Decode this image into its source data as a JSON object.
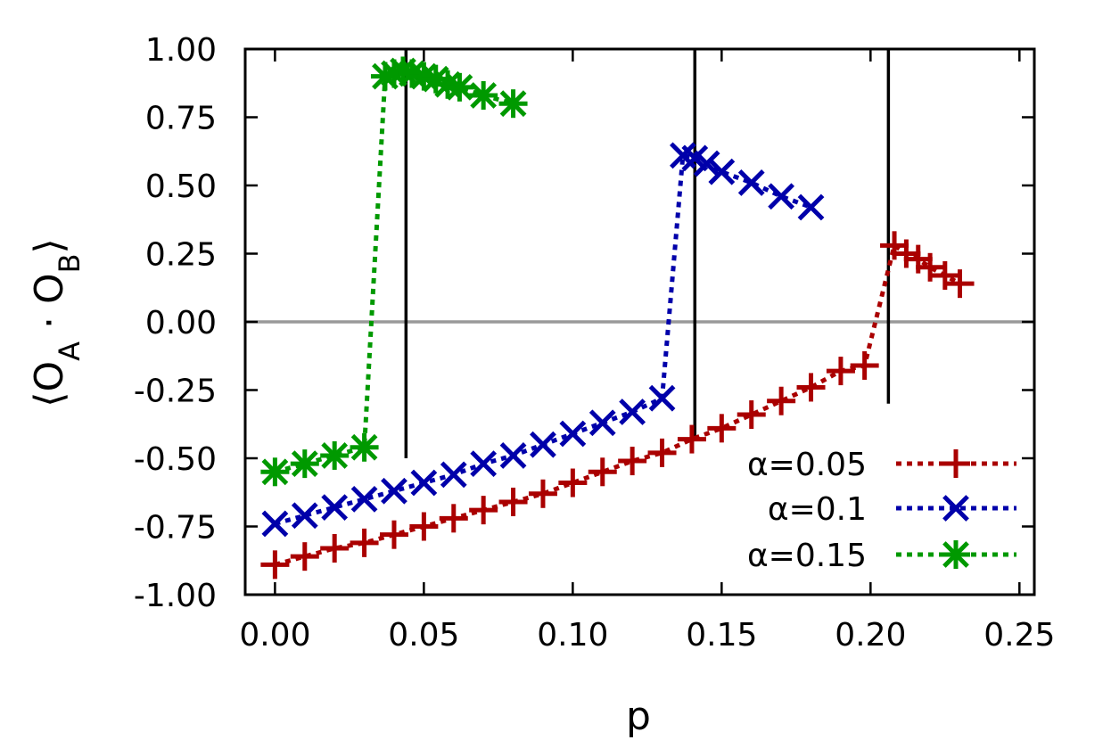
{
  "chart_data": {
    "type": "line",
    "xlabel": "p",
    "ylabel": "⟨O_A · O_B⟩",
    "ylabel_parts": {
      "open": "⟨",
      "o1": "O",
      "sub1": "A",
      "dot": " · ",
      "o2": "O",
      "sub2": "B",
      "close": "⟩"
    },
    "xlim": [
      -0.01,
      0.255
    ],
    "ylim": [
      -1.0,
      1.0
    ],
    "xticks": [
      "0.00",
      "0.05",
      "0.10",
      "0.15",
      "0.20",
      "0.25"
    ],
    "yticks": [
      "1.00",
      "0.75",
      "0.50",
      "0.25",
      "0.00",
      "-0.25",
      "-0.50",
      "-0.75",
      "-1.00"
    ],
    "xtick_values": [
      0.0,
      0.05,
      0.1,
      0.15,
      0.2,
      0.25
    ],
    "ytick_values": [
      1.0,
      0.75,
      0.5,
      0.25,
      0.0,
      -0.25,
      -0.5,
      -0.75,
      -1.0
    ],
    "grid": false,
    "legend_position": "bottom-right",
    "zero_line": {
      "y": 0.0,
      "color": "#999999"
    },
    "vertical_lines": [
      {
        "x": 0.044,
        "y_from": -0.5,
        "y_to": 1.0
      },
      {
        "x": 0.141,
        "y_from": -0.43,
        "y_to": 1.0
      },
      {
        "x": 0.206,
        "y_from": -0.3,
        "y_to": 1.0
      }
    ],
    "series": [
      {
        "name": "α=0.05",
        "color": "#aa0000",
        "marker": "plus",
        "points": [
          [
            0.0,
            -0.89
          ],
          [
            0.01,
            -0.86
          ],
          [
            0.02,
            -0.83
          ],
          [
            0.03,
            -0.81
          ],
          [
            0.04,
            -0.78
          ],
          [
            0.05,
            -0.75
          ],
          [
            0.06,
            -0.72
          ],
          [
            0.07,
            -0.69
          ],
          [
            0.08,
            -0.66
          ],
          [
            0.09,
            -0.63
          ],
          [
            0.1,
            -0.59
          ],
          [
            0.11,
            -0.55
          ],
          [
            0.12,
            -0.51
          ],
          [
            0.13,
            -0.48
          ],
          [
            0.14,
            -0.43
          ],
          [
            0.15,
            -0.39
          ],
          [
            0.16,
            -0.34
          ],
          [
            0.17,
            -0.29
          ],
          [
            0.18,
            -0.24
          ],
          [
            0.19,
            -0.18
          ],
          [
            0.198,
            -0.16
          ],
          [
            0.208,
            0.28
          ],
          [
            0.212,
            0.25
          ],
          [
            0.216,
            0.23
          ],
          [
            0.22,
            0.2
          ],
          [
            0.225,
            0.17
          ],
          [
            0.23,
            0.14
          ]
        ]
      },
      {
        "name": "α=0.1",
        "color": "#0000aa",
        "marker": "cross",
        "points": [
          [
            0.0,
            -0.74
          ],
          [
            0.01,
            -0.71
          ],
          [
            0.02,
            -0.68
          ],
          [
            0.03,
            -0.65
          ],
          [
            0.04,
            -0.62
          ],
          [
            0.05,
            -0.59
          ],
          [
            0.06,
            -0.56
          ],
          [
            0.07,
            -0.52
          ],
          [
            0.08,
            -0.49
          ],
          [
            0.09,
            -0.45
          ],
          [
            0.1,
            -0.41
          ],
          [
            0.11,
            -0.37
          ],
          [
            0.12,
            -0.33
          ],
          [
            0.13,
            -0.28
          ],
          [
            0.137,
            0.61
          ],
          [
            0.141,
            0.6
          ],
          [
            0.145,
            0.58
          ],
          [
            0.15,
            0.55
          ],
          [
            0.16,
            0.51
          ],
          [
            0.17,
            0.46
          ],
          [
            0.18,
            0.42
          ]
        ]
      },
      {
        "name": "α=0.15",
        "color": "#009900",
        "marker": "star",
        "points": [
          [
            0.0,
            -0.55
          ],
          [
            0.01,
            -0.52
          ],
          [
            0.02,
            -0.49
          ],
          [
            0.03,
            -0.46
          ],
          [
            0.037,
            0.9
          ],
          [
            0.04,
            0.91
          ],
          [
            0.043,
            0.92
          ],
          [
            0.046,
            0.91
          ],
          [
            0.05,
            0.9
          ],
          [
            0.054,
            0.89
          ],
          [
            0.058,
            0.87
          ],
          [
            0.062,
            0.86
          ],
          [
            0.07,
            0.83
          ],
          [
            0.08,
            0.8
          ]
        ]
      }
    ]
  }
}
